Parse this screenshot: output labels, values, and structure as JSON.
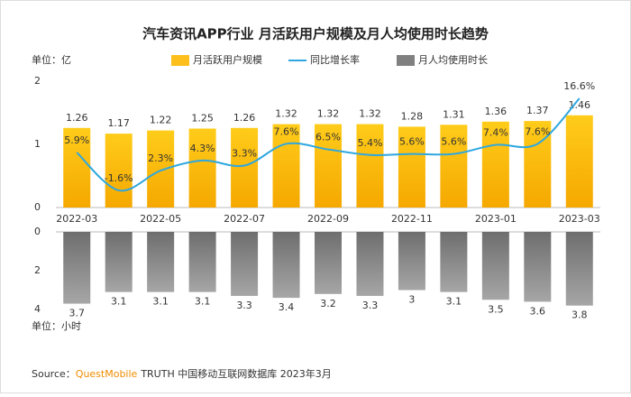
{
  "chart_data": [
    {
      "type": "bar",
      "title": "汽车资讯APP行业 月活跃用户规模及月人均使用时长趋势",
      "unit": "单位：亿",
      "categories": [
        "2022-03",
        null,
        "2022-05",
        null,
        "2022-07",
        null,
        "2022-09",
        null,
        "2022-11",
        null,
        "2023-01",
        null,
        "2023-03"
      ],
      "ylim": [
        0,
        2
      ],
      "yticks": [
        0,
        1,
        2
      ],
      "y2lim": [
        -5,
        20
      ],
      "series": [
        {
          "name": "月活跃用户规模",
          "type": "bar",
          "color": "#fdbf1b",
          "values": [
            1.26,
            1.17,
            1.22,
            1.25,
            1.26,
            1.32,
            1.32,
            1.32,
            1.28,
            1.31,
            1.36,
            1.37,
            1.46
          ],
          "value_labels": [
            "1.26",
            "1.17",
            "1.22",
            "1.25",
            "1.26",
            "1.32",
            "1.32",
            "1.32",
            "1.28",
            "1.31",
            "1.36",
            "1.37",
            "1.46"
          ]
        },
        {
          "name": "同比增长率",
          "type": "line",
          "axis": "y2",
          "color": "#2ea7e0",
          "values": [
            5.9,
            -1.6,
            2.3,
            4.3,
            3.3,
            7.6,
            6.5,
            5.4,
            5.6,
            5.6,
            7.4,
            7.6,
            16.6
          ],
          "value_labels": [
            "5.9%",
            "-1.6%",
            "2.3%",
            "4.3%",
            "3.3%",
            "7.6%",
            "6.5%",
            "5.4%",
            "5.6%",
            "5.6%",
            "7.4%",
            "7.6%",
            "16.6%"
          ]
        }
      ]
    },
    {
      "type": "bar",
      "unit": "单位：小时",
      "ylim": [
        0,
        4
      ],
      "yticks": [
        0,
        2,
        4
      ],
      "y_inverted": true,
      "series": [
        {
          "name": "月人均使用时长",
          "type": "bar",
          "color": "#808080",
          "values": [
            3.7,
            3.1,
            3.1,
            3.1,
            3.3,
            3.4,
            3.2,
            3.3,
            3.0,
            3.1,
            3.5,
            3.6,
            3.8
          ]
        }
      ]
    }
  ],
  "source": {
    "label": "Source：",
    "brand": "QuestMobile",
    "text": "TRUTH 中国移动互联网数据库 2023年3月"
  }
}
